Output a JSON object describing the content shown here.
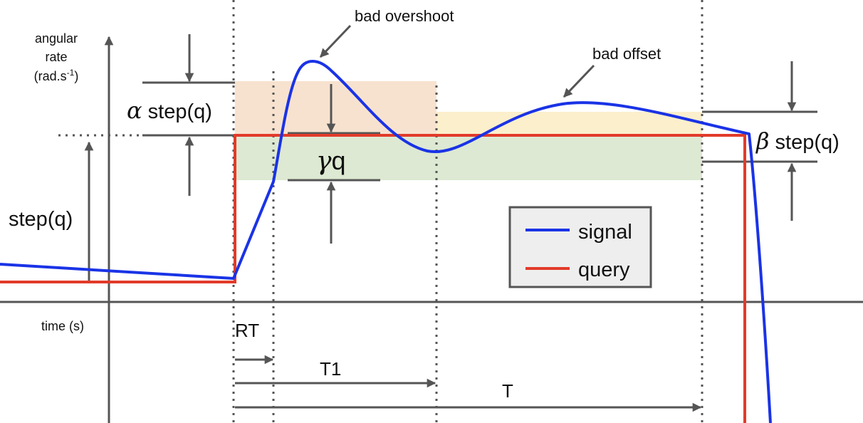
{
  "axes": {
    "ylabel_line1": "angular",
    "ylabel_line2": "rate",
    "ylabel_unit_base": "(rad.s",
    "ylabel_unit_exp": "-1",
    "ylabel_unit_close": ")",
    "xlabel": "time (s)"
  },
  "annotations": {
    "overshoot": "bad overshoot",
    "offset": "bad offset",
    "step": "step(q)",
    "alpha_symbol": "α",
    "alpha_text": " step(q)",
    "beta_symbol": "β",
    "beta_text": " step(q)",
    "gamma_symbol": "γ",
    "gamma_text": "q"
  },
  "intervals": {
    "rt": "RT",
    "t1": "T1",
    "t": "T"
  },
  "legend": {
    "signal": "signal",
    "query": "query"
  },
  "colors": {
    "signal": "#1a33e6",
    "query": "#e23b2a",
    "axis": "#555555",
    "alpha_band": "#f7e2cf",
    "beta_band": "#fbefcc",
    "gamma_band": "#dde9d2",
    "legend_bg": "#eeeeee"
  }
}
